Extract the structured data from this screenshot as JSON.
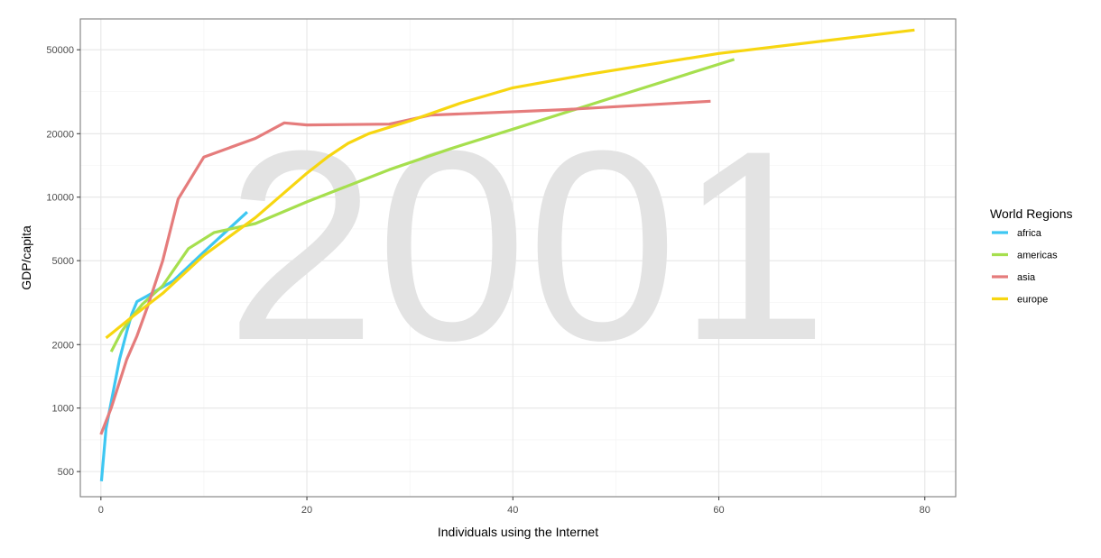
{
  "chart_data": {
    "type": "line",
    "watermark": "2001",
    "xlabel": "Individuals using the Internet",
    "ylabel": "GDP/capita",
    "xlim": [
      -2,
      83
    ],
    "ylim": [
      380,
      70000
    ],
    "y_scale": "log",
    "x_ticks": [
      0,
      20,
      40,
      60,
      80
    ],
    "x_tick_labels": [
      "0",
      "20",
      "40",
      "60",
      "80"
    ],
    "y_ticks": [
      500,
      1000,
      2000,
      5000,
      10000,
      20000,
      50000
    ],
    "y_tick_labels": [
      "500",
      "1000",
      "2000",
      "5000",
      "10000",
      "20000",
      "50000"
    ],
    "grid": true,
    "legend": {
      "title": "World Regions",
      "position": "right"
    },
    "series": [
      {
        "name": "africa",
        "color": "#3ec7f2",
        "points": [
          [
            0.05,
            450
          ],
          [
            0.5,
            800
          ],
          [
            1.2,
            1200
          ],
          [
            1.8,
            1700
          ],
          [
            2.5,
            2300
          ],
          [
            3,
            2800
          ],
          [
            3.5,
            3200
          ],
          [
            4.5,
            3400
          ],
          [
            7,
            4000
          ],
          [
            10,
            5500
          ],
          [
            14.2,
            8500
          ]
        ]
      },
      {
        "name": "americas",
        "color": "#a6df4e",
        "points": [
          [
            1,
            1850
          ],
          [
            2,
            2300
          ],
          [
            3,
            2700
          ],
          [
            4,
            3100
          ],
          [
            6,
            3800
          ],
          [
            8.5,
            5700
          ],
          [
            11,
            6800
          ],
          [
            15,
            7500
          ],
          [
            20,
            9500
          ],
          [
            28,
            13500
          ],
          [
            34,
            17000
          ],
          [
            40,
            21000
          ],
          [
            50,
            30000
          ],
          [
            61.5,
            45000
          ]
        ]
      },
      {
        "name": "asia",
        "color": "#e57c7c",
        "points": [
          [
            0,
            750
          ],
          [
            1,
            1000
          ],
          [
            2.5,
            1700
          ],
          [
            3.5,
            2200
          ],
          [
            4.5,
            3000
          ],
          [
            6,
            5000
          ],
          [
            7.5,
            9800
          ],
          [
            10,
            15500
          ],
          [
            15,
            19000
          ],
          [
            17.8,
            22500
          ],
          [
            20,
            22000
          ],
          [
            28,
            22200
          ],
          [
            32,
            24500
          ],
          [
            45,
            26000
          ],
          [
            59.2,
            28500
          ]
        ]
      },
      {
        "name": "europe",
        "color": "#f7d611",
        "points": [
          [
            0.5,
            2150
          ],
          [
            3,
            2700
          ],
          [
            6,
            3500
          ],
          [
            10,
            5300
          ],
          [
            15,
            8000
          ],
          [
            20,
            13000
          ],
          [
            22,
            15500
          ],
          [
            24,
            18000
          ],
          [
            26,
            20000
          ],
          [
            30,
            23000
          ],
          [
            35,
            28000
          ],
          [
            40,
            33000
          ],
          [
            47,
            38000
          ],
          [
            60,
            48000
          ],
          [
            79,
            62000
          ]
        ]
      }
    ]
  }
}
